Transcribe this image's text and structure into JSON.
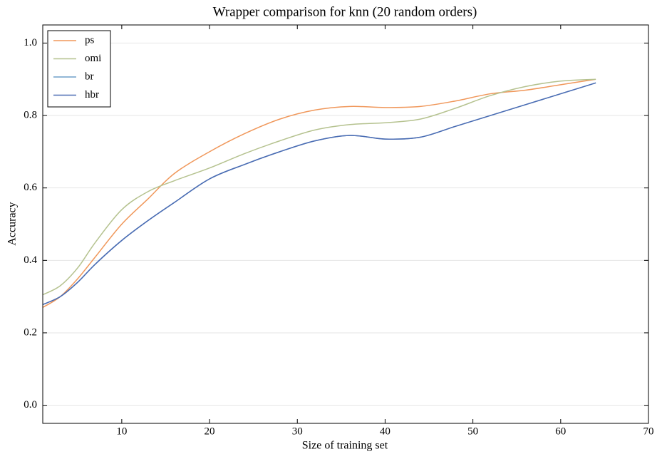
{
  "chart_data": {
    "type": "line",
    "title": "Wrapper comparison for knn (20 random orders)",
    "x_label": "Size of training set",
    "y_label": "Accuracy",
    "x": [
      1,
      3,
      5,
      7,
      10,
      13,
      16,
      20,
      24,
      28,
      32,
      36,
      40,
      44,
      48,
      52,
      56,
      60,
      64
    ],
    "series": [
      {
        "name": "ps",
        "color": "#f0975a",
        "values": [
          0.27,
          0.3,
          0.35,
          0.41,
          0.5,
          0.57,
          0.64,
          0.7,
          0.75,
          0.79,
          0.815,
          0.825,
          0.822,
          0.825,
          0.84,
          0.86,
          0.87,
          0.885,
          0.9
        ]
      },
      {
        "name": "omi",
        "color": "#b5c28f",
        "values": [
          0.305,
          0.33,
          0.38,
          0.45,
          0.54,
          0.59,
          0.62,
          0.655,
          0.695,
          0.73,
          0.76,
          0.775,
          0.78,
          0.79,
          0.82,
          0.855,
          0.88,
          0.895,
          0.9
        ]
      },
      {
        "name": "br",
        "color": "#6f9fc8",
        "values": [
          0.278,
          0.3,
          0.34,
          0.39,
          0.455,
          0.51,
          0.56,
          0.625,
          0.665,
          0.7,
          0.73,
          0.745,
          0.735,
          0.74,
          0.77,
          0.8,
          0.83,
          0.86,
          0.89
        ]
      },
      {
        "name": "hbr",
        "color": "#4a6bb3",
        "values": [
          0.278,
          0.3,
          0.34,
          0.39,
          0.455,
          0.51,
          0.56,
          0.625,
          0.665,
          0.7,
          0.73,
          0.745,
          0.735,
          0.74,
          0.77,
          0.8,
          0.83,
          0.86,
          0.89
        ]
      }
    ],
    "xlim": [
      1,
      70
    ],
    "xticks": [
      10,
      20,
      30,
      40,
      50,
      60,
      70
    ],
    "ylim": [
      -0.05,
      1.05
    ],
    "yticks": [
      {
        "value": 0,
        "label": "0.0"
      },
      0.2,
      0.4,
      0.6,
      0.8,
      {
        "value": 1,
        "label": "1.0"
      }
    ],
    "grid": "y",
    "legend": "upper left"
  }
}
